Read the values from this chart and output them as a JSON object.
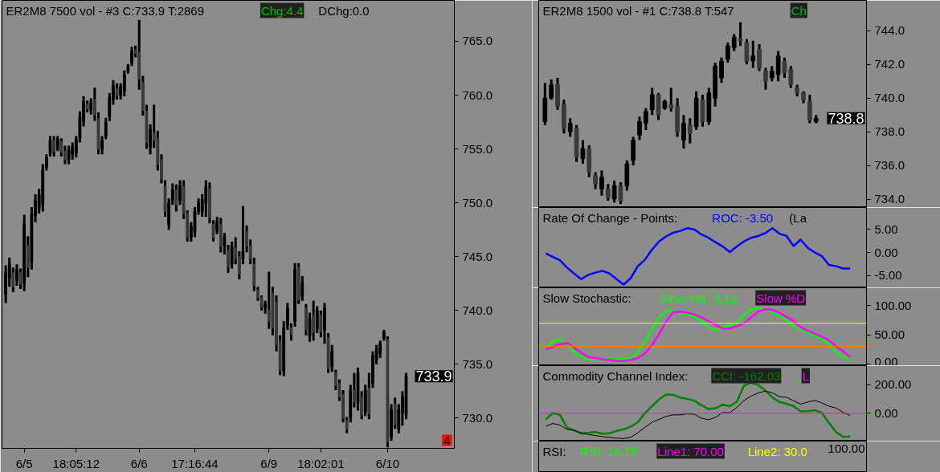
{
  "chart_data": [
    {
      "type": "candlestick",
      "title": "ER2M8  7500 vol - #3  C:733.9  T:2869",
      "annotations": [
        "Chg:4.4",
        "DChg:0.0",
        "733.9",
        "4"
      ],
      "categories": [
        null,
        null,
        null,
        null,
        null,
        "6/5",
        null,
        null,
        null,
        null,
        null,
        null,
        null,
        null,
        null,
        null,
        null,
        null,
        null,
        "18:05:12",
        null,
        null,
        null,
        null,
        null,
        null,
        null,
        null,
        null,
        null,
        null,
        null,
        null,
        null,
        null,
        null,
        "6/6",
        null,
        null,
        null,
        null,
        null,
        null,
        null,
        null,
        null,
        null,
        null,
        null,
        null,
        null,
        "17:16:44",
        null,
        null,
        null,
        null,
        null,
        null,
        null,
        null,
        null,
        null,
        null,
        null,
        null,
        null,
        null,
        null,
        null,
        null,
        null,
        "6/9",
        null,
        null,
        null,
        null,
        null,
        null,
        null,
        null,
        null,
        null,
        null,
        null,
        null,
        "18:02:01",
        null,
        null,
        null,
        null,
        null,
        null,
        null,
        null,
        null,
        null,
        null,
        null,
        null,
        null,
        null,
        null,
        null,
        "6/10",
        null,
        null,
        null,
        null,
        null
      ],
      "ohlc": [
        [
          741.5,
          744.2,
          740.7,
          743.5
        ],
        [
          743.0,
          744.9,
          742.2,
          744.3
        ],
        [
          743.5,
          744.0,
          741.7,
          742.2
        ],
        [
          742.8,
          744.3,
          742.3,
          743.8
        ],
        [
          743.5,
          743.9,
          742.0,
          742.5
        ],
        [
          742.5,
          748.9,
          741.8,
          748.0
        ],
        [
          746.0,
          746.9,
          743.1,
          744.0
        ],
        [
          744.5,
          749.6,
          743.8,
          749.0
        ],
        [
          748.8,
          750.8,
          748.2,
          750.2
        ],
        [
          749.5,
          751.3,
          749.0,
          750.8
        ],
        [
          749.8,
          753.6,
          749.2,
          753.0
        ],
        [
          753.3,
          754.5,
          753.0,
          754.2
        ],
        [
          754.6,
          756.2,
          754.3,
          755.8
        ],
        [
          755.8,
          756.2,
          754.3,
          754.8
        ],
        [
          755.0,
          756.2,
          754.8,
          755.9
        ],
        [
          755.7,
          756.0,
          754.3,
          754.7
        ],
        [
          754.8,
          755.3,
          753.6,
          754.0
        ],
        [
          754.0,
          755.3,
          753.6,
          754.9
        ],
        [
          754.5,
          755.6,
          754.0,
          755.2
        ],
        [
          754.6,
          756.2,
          754.2,
          755.9
        ],
        [
          756.0,
          758.5,
          755.6,
          758.0
        ],
        [
          757.6,
          759.9,
          757.1,
          759.4
        ],
        [
          759.2,
          759.5,
          758.4,
          758.7
        ],
        [
          758.6,
          759.7,
          758.2,
          759.3
        ],
        [
          759.6,
          760.7,
          757.6,
          758.2
        ],
        [
          757.8,
          758.4,
          754.5,
          755.0
        ],
        [
          755.0,
          756.2,
          754.5,
          755.8
        ],
        [
          756.2,
          757.9,
          755.9,
          757.5
        ],
        [
          758.0,
          760.2,
          757.6,
          759.8
        ],
        [
          759.6,
          761.4,
          759.1,
          760.9
        ],
        [
          760.6,
          761.1,
          759.6,
          760.0
        ],
        [
          760.0,
          761.1,
          759.6,
          760.8
        ],
        [
          760.4,
          762.3,
          759.9,
          761.9
        ],
        [
          762.2,
          762.9,
          762.0,
          762.7
        ],
        [
          763.0,
          764.5,
          762.7,
          764.1
        ],
        [
          764.2,
          764.6,
          763.5,
          763.9
        ],
        [
          764.0,
          767.0,
          760.5,
          761.5
        ],
        [
          761.2,
          761.8,
          758.1,
          758.6
        ],
        [
          758.5,
          759.1,
          755.0,
          755.6
        ],
        [
          755.2,
          757.3,
          754.5,
          756.8
        ],
        [
          756.5,
          759.1,
          755.1,
          755.8
        ],
        [
          756.0,
          756.7,
          753.0,
          753.6
        ],
        [
          754.0,
          754.5,
          751.8,
          752.2
        ],
        [
          751.6,
          752.1,
          748.7,
          749.2
        ],
        [
          748.0,
          750.4,
          747.5,
          750.0
        ],
        [
          750.2,
          751.8,
          749.8,
          751.2
        ],
        [
          751.2,
          751.7,
          749.2,
          749.8
        ],
        [
          750.2,
          752.1,
          749.8,
          751.6
        ],
        [
          751.5,
          752.1,
          748.5,
          749.0
        ],
        [
          749.0,
          749.3,
          746.4,
          746.8
        ],
        [
          746.8,
          748.2,
          746.4,
          747.8
        ],
        [
          747.3,
          749.6,
          746.8,
          749.2
        ],
        [
          749.2,
          750.4,
          748.9,
          750.0
        ],
        [
          749.2,
          750.8,
          748.7,
          750.3
        ],
        [
          750.0,
          752.1,
          748.7,
          751.5
        ],
        [
          751.3,
          751.9,
          748.1,
          748.6
        ],
        [
          748.0,
          748.4,
          746.4,
          746.8
        ],
        [
          747.4,
          748.7,
          747.1,
          748.3
        ],
        [
          748.0,
          748.6,
          745.4,
          746.0
        ],
        [
          746.0,
          747.2,
          745.2,
          746.8
        ],
        [
          745.6,
          746.1,
          743.5,
          744.0
        ],
        [
          744.3,
          746.4,
          743.9,
          746.0
        ],
        [
          745.8,
          746.8,
          744.3,
          744.8
        ],
        [
          745.0,
          745.5,
          742.9,
          743.4
        ],
        [
          744.8,
          749.7,
          744.3,
          745.5
        ],
        [
          747.3,
          747.9,
          745.4,
          746.0
        ],
        [
          746.0,
          746.6,
          744.3,
          744.8
        ],
        [
          744.3,
          744.9,
          741.8,
          742.3
        ],
        [
          741.9,
          742.2,
          740.9,
          741.2
        ],
        [
          741.2,
          741.4,
          740.0,
          740.3
        ],
        [
          740.2,
          740.9,
          739.7,
          740.6
        ],
        [
          740.0,
          743.6,
          738.3,
          739.0
        ],
        [
          741.6,
          742.2,
          737.7,
          738.4
        ],
        [
          740.8,
          741.4,
          736.2,
          736.8
        ],
        [
          737.2,
          737.7,
          734.0,
          734.4
        ],
        [
          734.4,
          739.0,
          733.9,
          738.4
        ],
        [
          738.6,
          740.7,
          738.2,
          740.2
        ],
        [
          738.4,
          738.8,
          737.2,
          737.8
        ],
        [
          739.0,
          744.4,
          738.5,
          743.8
        ],
        [
          744.0,
          744.4,
          740.6,
          741.0
        ],
        [
          741.3,
          743.2,
          740.9,
          742.6
        ],
        [
          740.2,
          740.6,
          737.7,
          738.2
        ],
        [
          737.6,
          739.8,
          737.1,
          739.3
        ],
        [
          739.5,
          740.9,
          737.2,
          738.0
        ],
        [
          738.3,
          740.4,
          737.9,
          740.0
        ],
        [
          739.6,
          740.0,
          737.5,
          738.0
        ],
        [
          738.2,
          740.7,
          736.9,
          740.2
        ],
        [
          737.5,
          737.9,
          734.2,
          734.6
        ],
        [
          734.8,
          736.8,
          734.3,
          736.2
        ],
        [
          734.2,
          734.5,
          732.6,
          733.0
        ],
        [
          733.2,
          733.6,
          731.6,
          732.0
        ],
        [
          732.2,
          732.6,
          729.6,
          730.0
        ],
        [
          729.8,
          730.1,
          728.6,
          729.0
        ],
        [
          730.0,
          733.1,
          729.6,
          732.6
        ],
        [
          732.6,
          734.2,
          731.0,
          731.5
        ],
        [
          731.4,
          734.7,
          730.7,
          734.2
        ],
        [
          732.0,
          732.5,
          729.9,
          730.3
        ],
        [
          730.6,
          733.1,
          730.2,
          732.6
        ],
        [
          732.8,
          734.2,
          729.9,
          730.4
        ],
        [
          733.2,
          736.2,
          732.8,
          735.8
        ],
        [
          735.4,
          736.8,
          735.0,
          736.4
        ],
        [
          736.0,
          737.2,
          735.6,
          736.9
        ],
        [
          737.4,
          738.2,
          737.2,
          738.0
        ],
        [
          737.3,
          737.6,
          727.3,
          727.8
        ],
        [
          728.3,
          731.3,
          727.9,
          730.8
        ],
        [
          731.3,
          731.9,
          729.0,
          729.4
        ],
        [
          729.0,
          731.3,
          728.6,
          730.8
        ],
        [
          730.5,
          732.5,
          729.3,
          732.0
        ],
        [
          730.3,
          734.2,
          729.9,
          733.9
        ]
      ],
      "ylim": [
        727.2,
        768.8
      ],
      "yticks": [
        {
          "value": 730,
          "label": "730.0"
        },
        {
          "value": 735,
          "label": "735.0"
        },
        {
          "value": 740,
          "label": "740.0"
        },
        {
          "value": 745,
          "label": "745.0"
        },
        {
          "value": 750,
          "label": "750.0"
        },
        {
          "value": 755,
          "label": "755.0"
        },
        {
          "value": 760,
          "label": "760.0"
        },
        {
          "value": 765,
          "label": "765.0"
        }
      ]
    },
    {
      "type": "candlestick",
      "title": "ER2M8  1500 vol - #1  C:738.8  T:547",
      "annotations": [
        "738.8",
        "Ch"
      ],
      "categories": [
        null,
        null,
        null,
        null,
        null,
        null,
        null,
        null,
        null,
        null,
        null,
        null,
        null,
        null,
        null,
        null,
        null,
        null,
        null,
        null,
        null,
        null,
        null,
        null,
        null,
        null,
        null,
        null,
        null,
        null,
        null,
        null,
        null,
        null,
        null,
        null,
        null,
        null,
        null,
        null,
        null,
        null,
        null,
        null
      ],
      "ohlc": [
        [
          738.6,
          740.9,
          738.4,
          740.0
        ],
        [
          740.0,
          741.1,
          739.9,
          740.8
        ],
        [
          740.8,
          741.2,
          739.3,
          739.5
        ],
        [
          739.6,
          739.9,
          737.9,
          738.2
        ],
        [
          738.0,
          738.8,
          737.7,
          738.5
        ],
        [
          738.2,
          738.4,
          736.2,
          736.5
        ],
        [
          736.4,
          737.5,
          736.1,
          737.0
        ],
        [
          737.0,
          737.2,
          735.3,
          735.6
        ],
        [
          735.4,
          735.6,
          734.6,
          734.9
        ],
        [
          734.6,
          735.7,
          734.2,
          735.3
        ],
        [
          734.6,
          734.9,
          733.9,
          734.1
        ],
        [
          734.0,
          735.1,
          733.8,
          734.8
        ],
        [
          734.8,
          735.0,
          733.7,
          733.9
        ],
        [
          734.8,
          736.3,
          734.5,
          736.1
        ],
        [
          736.3,
          737.7,
          736.0,
          737.5
        ],
        [
          737.8,
          738.9,
          737.5,
          738.6
        ],
        [
          738.5,
          739.4,
          738.1,
          739.2
        ],
        [
          739.3,
          740.6,
          739.0,
          740.2
        ],
        [
          740.2,
          740.3,
          738.7,
          739.0
        ],
        [
          739.4,
          739.9,
          739.3,
          739.8
        ],
        [
          739.6,
          740.6,
          739.2,
          739.4
        ],
        [
          739.5,
          740.0,
          737.7,
          738.0
        ],
        [
          737.5,
          739.0,
          737.0,
          738.5
        ],
        [
          738.4,
          738.8,
          737.3,
          737.9
        ],
        [
          738.3,
          740.4,
          738.1,
          740.0
        ],
        [
          739.9,
          740.2,
          738.3,
          738.6
        ],
        [
          738.6,
          740.6,
          738.4,
          740.3
        ],
        [
          740.0,
          742.1,
          739.5,
          741.9
        ],
        [
          741.2,
          742.4,
          740.9,
          742.2
        ],
        [
          742.3,
          743.3,
          742.1,
          743.1
        ],
        [
          743.0,
          743.8,
          742.8,
          743.6
        ],
        [
          743.5,
          744.5,
          743.1,
          743.4
        ],
        [
          743.3,
          743.5,
          742.0,
          742.2
        ],
        [
          742.2,
          743.4,
          741.8,
          742.5
        ],
        [
          742.9,
          743.2,
          741.6,
          741.8
        ],
        [
          741.6,
          741.8,
          740.5,
          741.0
        ],
        [
          741.2,
          741.9,
          741.0,
          741.6
        ],
        [
          741.4,
          742.8,
          741.0,
          742.5
        ],
        [
          742.2,
          742.4,
          741.2,
          741.5
        ],
        [
          741.7,
          741.9,
          740.6,
          740.8
        ],
        [
          740.6,
          740.8,
          740.1,
          740.3
        ],
        [
          740.3,
          740.4,
          739.7,
          739.9
        ],
        [
          739.8,
          740.2,
          738.5,
          738.7
        ],
        [
          738.6,
          739.0,
          738.5,
          738.8
        ]
      ],
      "ylim": [
        733.5,
        745.8
      ],
      "yticks": [
        {
          "value": 734,
          "label": "734.0"
        },
        {
          "value": 736,
          "label": "736.0"
        },
        {
          "value": 738,
          "label": "738.0"
        },
        {
          "value": 740,
          "label": "740.0"
        },
        {
          "value": 742,
          "label": "742.0"
        },
        {
          "value": 744,
          "label": "744.0"
        }
      ]
    },
    {
      "type": "line",
      "title": "Rate Of Change - Points:",
      "legend": "top",
      "annotations": [
        "(La"
      ],
      "categories": [
        null,
        null,
        null,
        null,
        null,
        null,
        null,
        null,
        null,
        null,
        null,
        null,
        null,
        null,
        null,
        null,
        null,
        null,
        null,
        null,
        null,
        null,
        null,
        null,
        null,
        null,
        null,
        null,
        null,
        null,
        null,
        null,
        null,
        null,
        null,
        null,
        null,
        null,
        null,
        null,
        null,
        null,
        null,
        null
      ],
      "series": [
        {
          "name": "ROC: -3.50",
          "color": "#0000ff",
          "values": [
            -0.2,
            -1.0,
            -1.7,
            -3.3,
            -4.6,
            -5.8,
            -4.9,
            -4.4,
            -4.0,
            -4.6,
            -5.8,
            -7.0,
            -5.6,
            -3.0,
            -1.6,
            0.6,
            2.4,
            3.5,
            4.3,
            4.7,
            5.3,
            5.0,
            3.9,
            3.2,
            2.2,
            1.3,
            0.1,
            1.3,
            2.4,
            3.2,
            3.6,
            4.2,
            5.3,
            4.1,
            3.6,
            1.4,
            2.8,
            1.0,
            0.0,
            -0.8,
            -2.7,
            -3.0,
            -3.5,
            -3.5
          ]
        }
      ],
      "ylim": [
        -7.7,
        9.8
      ],
      "yticks": [
        {
          "value": -5,
          "label": "-5.00"
        },
        {
          "value": 0,
          "label": "0.00"
        },
        {
          "value": 5,
          "label": "5.00"
        }
      ]
    },
    {
      "type": "line",
      "title": "Slow Stochastic:",
      "legend": "top",
      "categories": [
        null,
        null,
        null,
        null,
        null,
        null,
        null,
        null,
        null,
        null,
        null,
        null,
        null,
        null,
        null,
        null,
        null,
        null,
        null,
        null,
        null,
        null,
        null,
        null,
        null,
        null,
        null,
        null,
        null,
        null,
        null,
        null,
        null,
        null,
        null,
        null,
        null,
        null,
        null,
        null,
        null,
        null,
        null,
        null
      ],
      "series": [
        {
          "name": "Slow %K: 6.12",
          "color": "#00ff00",
          "values": [
            25,
            39,
            42,
            34,
            21,
            13,
            8,
            8,
            8,
            8,
            8,
            8,
            9,
            20,
            38,
            60,
            80,
            91,
            91,
            87,
            86,
            81,
            74,
            64,
            58,
            63,
            67,
            70,
            84,
            94,
            96,
            94,
            89,
            82,
            75,
            65,
            60,
            54,
            48,
            43,
            34,
            20,
            12,
            6.12
          ]
        },
        {
          "name": "Slow %D",
          "color": "#ff00ff",
          "values": [
            25,
            29,
            34,
            36,
            28,
            19,
            12,
            10,
            8,
            7,
            5,
            5,
            7,
            10,
            18,
            32,
            51,
            73,
            89,
            90,
            88,
            85,
            80,
            74,
            67,
            61,
            61,
            65,
            70,
            80,
            90,
            94,
            93,
            88,
            81,
            74,
            63,
            57,
            52,
            47,
            41,
            30,
            22,
            12
          ]
        }
      ],
      "ref_lines": [
        {
          "axis": "y",
          "value": 70,
          "color": "#ffff00"
        },
        {
          "axis": "y",
          "value": 30,
          "color": "#ff8000"
        }
      ],
      "ylim": [
        -3,
        131
      ],
      "yticks": [
        {
          "value": 0,
          "label": "0.00"
        },
        {
          "value": 50,
          "label": "50.00"
        },
        {
          "value": 100,
          "label": "100.00"
        }
      ]
    },
    {
      "type": "line",
      "title": "Commodity Channel Index:",
      "legend": "top",
      "annotations": [
        "L"
      ],
      "categories": [
        null,
        null,
        null,
        null,
        null,
        null,
        null,
        null,
        null,
        null,
        null,
        null,
        null,
        null,
        null,
        null,
        null,
        null,
        null,
        null,
        null,
        null,
        null,
        null,
        null,
        null,
        null,
        null,
        null,
        null,
        null,
        null,
        null,
        null,
        null,
        null,
        null,
        null,
        null,
        null,
        null,
        null,
        null,
        null
      ],
      "series": [
        {
          "name": "CCI: -162.03",
          "color": "#008000",
          "values": [
            -43,
            2,
            -11,
            -99,
            -118,
            -142,
            -135,
            -131,
            -142,
            -140,
            -123,
            -112,
            -93,
            -62,
            0,
            50,
            97,
            131,
            129,
            110,
            101,
            88,
            56,
            30,
            36,
            60,
            50,
            82,
            194,
            213,
            198,
            159,
            112,
            79,
            67,
            50,
            13,
            15,
            22,
            4,
            -67,
            -131,
            -164,
            -162.03
          ]
        },
        {
          "color": "#000000",
          "values": [
            -90,
            -71,
            -82,
            -112,
            -120,
            -136,
            -148,
            -155,
            -163,
            -168,
            -174,
            -176,
            -168,
            -136,
            -99,
            -62,
            -43,
            -21,
            -11,
            -11,
            -4,
            -7,
            -34,
            -45,
            -28,
            7,
            4,
            41,
            90,
            120,
            142,
            155,
            144,
            116,
            112,
            88,
            64,
            79,
            90,
            73,
            50,
            37,
            7,
            -15
          ]
        }
      ],
      "ref_lines": [
        {
          "axis": "y",
          "value": 0,
          "color": "#ff00ff"
        }
      ],
      "ylim": [
        -194,
        333
      ],
      "yticks": [
        {
          "value": 0,
          "label": "0.00"
        },
        {
          "value": 200,
          "label": "200.00"
        }
      ]
    },
    {
      "type": "other",
      "title": "RSI:",
      "annotations": [
        "RSI: 18.18",
        "Line1: 70.00",
        "Line2: 30.0",
        "100.00"
      ]
    }
  ]
}
